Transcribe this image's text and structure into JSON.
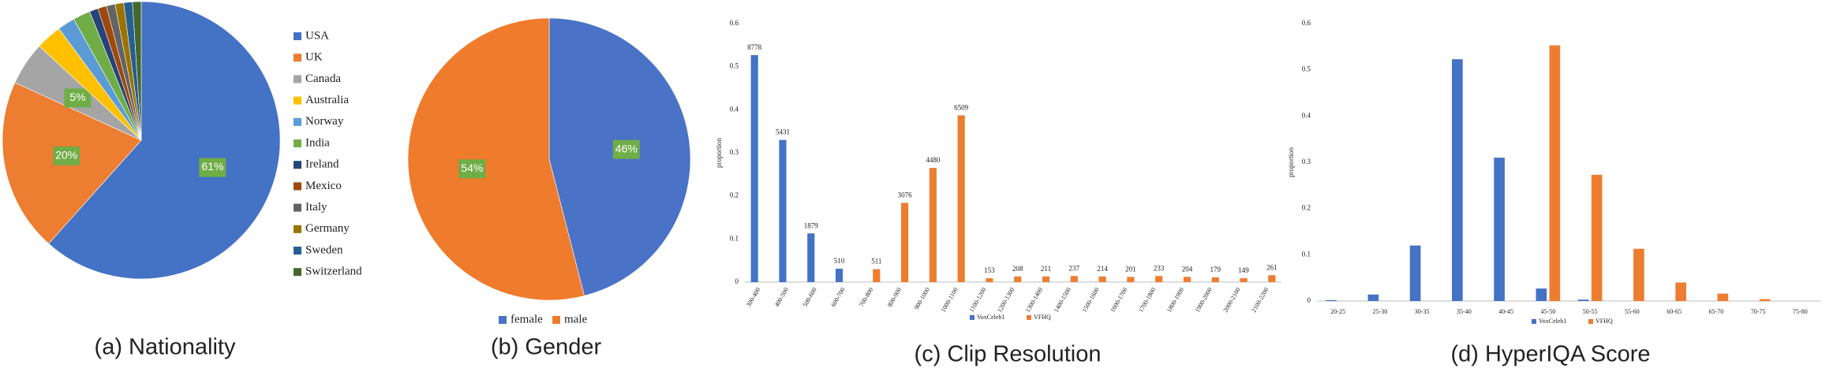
{
  "chart_data": [
    {
      "type": "pie",
      "title": "(a) Nationality",
      "categories": [
        "USA",
        "UK",
        "Canada",
        "Australia",
        "Norway",
        "India",
        "Ireland",
        "Mexico",
        "Italy",
        "Germany",
        "Sweden",
        "Switzerland"
      ],
      "values": [
        61,
        20,
        5,
        3,
        2,
        2,
        1,
        1,
        1,
        1,
        1,
        1
      ],
      "value_labels": [
        "61%",
        "20%",
        "5%",
        null,
        null,
        null,
        null,
        null,
        null,
        null,
        null,
        null
      ],
      "colors": [
        "#4472c4",
        "#ed7d31",
        "#a5a5a5",
        "#ffc000",
        "#5b9bd5",
        "#70ad47",
        "#264478",
        "#9e480e",
        "#636363",
        "#997300",
        "#255e91",
        "#43682b"
      ],
      "legend": "right"
    },
    {
      "type": "pie",
      "title": "(b) Gender",
      "categories": [
        "female",
        "male"
      ],
      "values": [
        46,
        54
      ],
      "value_labels": [
        "46%",
        "54%"
      ],
      "colors": [
        "#4a72c6",
        "#ef7b2c"
      ],
      "legend": "bottom"
    },
    {
      "type": "bar",
      "title": "(c) Clip Resolution",
      "y_label": "proportion",
      "categories": [
        "300-400",
        "400-500",
        "500-600",
        "600-700",
        "700-800",
        "800-900",
        "900-1000",
        "1000-1100",
        "1100-1200",
        "1200-1300",
        "1300-1400",
        "1400-1500",
        "1500-1600",
        "1600-1700",
        "1700-1800",
        "1800-1900",
        "1900-2000",
        "2000-2100",
        "2100-2200"
      ],
      "series": [
        {
          "name": "VoxCeleb1",
          "color": "#4472c4",
          "values": [
            0.527,
            0.33,
            0.113,
            0.031,
            null,
            null,
            null,
            null,
            null,
            null,
            null,
            null,
            null,
            null,
            null,
            null,
            null,
            null,
            null
          ]
        },
        {
          "name": "VFHQ",
          "color": "#ed7d31",
          "values": [
            null,
            null,
            null,
            null,
            0.03,
            0.184,
            0.265,
            0.387,
            0.009,
            0.013,
            0.013,
            0.014,
            0.013,
            0.012,
            0.014,
            0.012,
            0.011,
            0.009,
            0.016
          ]
        }
      ],
      "counts": [
        8778,
        5431,
        1879,
        510,
        511,
        3076,
        4480,
        6509,
        153,
        208,
        211,
        237,
        214,
        201,
        233,
        204,
        179,
        149,
        261
      ],
      "ylim": [
        0,
        0.6
      ],
      "yticks": [
        0,
        0.1,
        0.2,
        0.3,
        0.4,
        0.5,
        0.6
      ],
      "legend": "bottom"
    },
    {
      "type": "bar",
      "title": "(d) HyperIQA Score",
      "y_label": "proportion",
      "categories": [
        "20-25",
        "25-30",
        "30-35",
        "35-40",
        "40-45",
        "45-50",
        "50-55",
        "55-60",
        "60-65",
        "65-70",
        "70-75",
        "75-80"
      ],
      "series": [
        {
          "name": "VoxCeleb1",
          "color": "#4472c4",
          "values": [
            0.002,
            0.014,
            0.12,
            0.523,
            0.31,
            0.027,
            0.003,
            null,
            null,
            null,
            null,
            null
          ]
        },
        {
          "name": "VFHQ",
          "color": "#ed7d31",
          "values": [
            null,
            null,
            null,
            null,
            null,
            0.553,
            0.273,
            0.113,
            0.04,
            0.016,
            0.004,
            null
          ]
        }
      ],
      "ylim": [
        0,
        0.6
      ],
      "yticks": [
        0,
        0.1,
        0.2,
        0.3,
        0.4,
        0.5,
        0.6
      ],
      "legend": "bottom"
    }
  ]
}
